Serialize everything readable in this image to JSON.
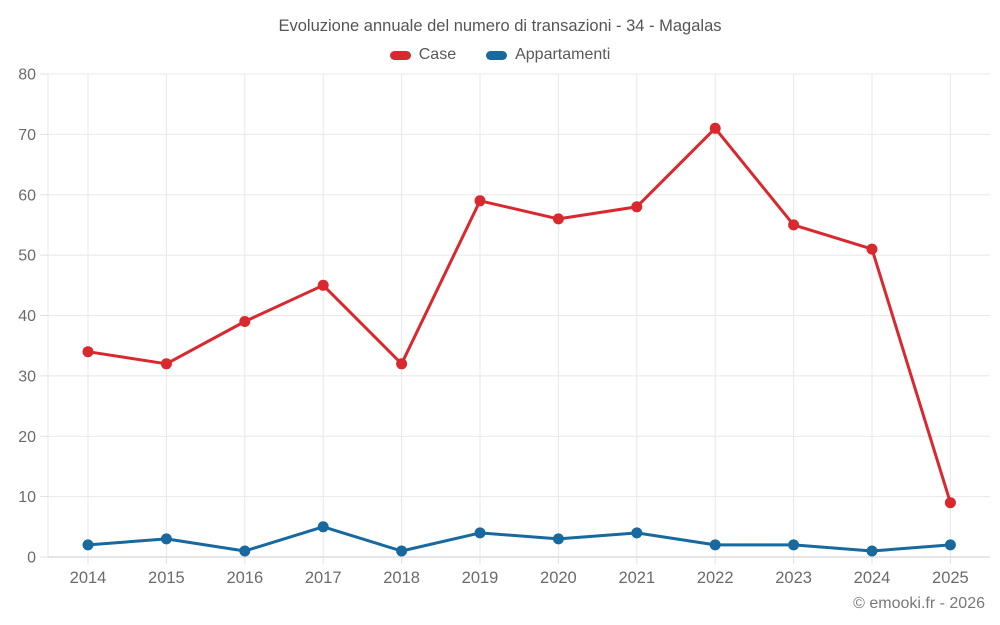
{
  "footer": {
    "copyright": "© emooki.fr - 2026"
  },
  "colors": {
    "grid": "#e8e8e8",
    "axis_line": "#cccccc",
    "tick": "#e0e0e0",
    "axis_text": "#6b6b6b",
    "title_text": "#555555",
    "case_red": "#d9282e",
    "appartamenti_blue": "#17699e"
  },
  "chart_data": {
    "type": "line",
    "title": "Evoluzione annuale del numero di transazioni - 34 - Magalas",
    "categories": [
      "2014",
      "2015",
      "2016",
      "2017",
      "2018",
      "2019",
      "2020",
      "2021",
      "2022",
      "2023",
      "2024",
      "2025"
    ],
    "series": [
      {
        "name": "Case",
        "color": "#d9282e",
        "values": [
          34,
          32,
          39,
          45,
          32,
          59,
          56,
          58,
          71,
          55,
          51,
          9
        ]
      },
      {
        "name": "Appartamenti",
        "color": "#17699e",
        "values": [
          2,
          3,
          1,
          5,
          1,
          4,
          3,
          4,
          2,
          2,
          1,
          2
        ]
      }
    ],
    "xlabel": "",
    "ylabel": "",
    "ylim": [
      0,
      80
    ],
    "yticks": [
      0,
      10,
      20,
      30,
      40,
      50,
      60,
      70,
      80
    ],
    "grid": "on",
    "legend_position": "top"
  }
}
